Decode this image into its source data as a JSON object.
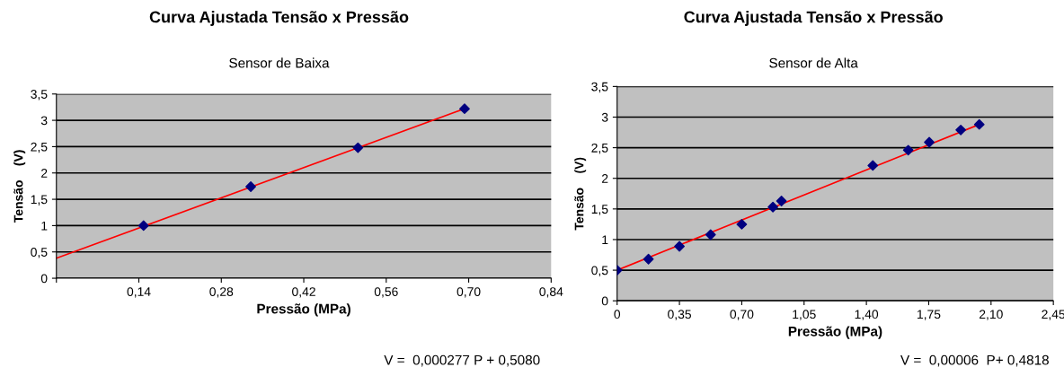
{
  "chart_data": [
    {
      "type": "scatter",
      "title": "Curva Ajustada Tensão x Pressão",
      "subtitle": "Sensor de Baixa",
      "xlabel": "Pressão (MPa)",
      "ylabel": "Tensão    (V)",
      "xlim": [
        0,
        0.84
      ],
      "xticks": [
        {
          "value": 0,
          "label": null
        },
        {
          "value": 0.14,
          "label": "0,14"
        },
        {
          "value": 0.28,
          "label": "0,28"
        },
        {
          "value": 0.42,
          "label": "0,42"
        },
        {
          "value": 0.56,
          "label": "0,56"
        },
        {
          "value": 0.7,
          "label": "0,70"
        },
        {
          "value": 0.84,
          "label": "0,84"
        }
      ],
      "ylim": [
        0,
        3.5
      ],
      "yticks": [
        {
          "value": 0,
          "label": "0"
        },
        {
          "value": 0.5,
          "label": "0,5"
        },
        {
          "value": 1,
          "label": "1"
        },
        {
          "value": 1.5,
          "label": "1,5"
        },
        {
          "value": 2,
          "label": "2"
        },
        {
          "value": 2.5,
          "label": "2,5"
        },
        {
          "value": 3,
          "label": "3"
        },
        {
          "value": 3.5,
          "label": "3,5"
        }
      ],
      "grid": "y",
      "legend": false,
      "annotations": [
        "V =  0,000277 P + 0,5080"
      ],
      "series": [
        {
          "color": "#000080",
          "marker": "diamond",
          "x": [
            0.148,
            0.33,
            0.512,
            0.693
          ],
          "values": [
            1.0,
            1.74,
            2.48,
            3.22
          ]
        },
        {
          "type": "line",
          "color": "#ff0000",
          "marker": "none",
          "x": [
            0,
            0.693
          ],
          "values": [
            0.38,
            3.22
          ]
        }
      ]
    },
    {
      "type": "scatter",
      "title": "Curva Ajustada Tensão x Pressão",
      "subtitle": "Sensor de Alta",
      "xlabel": "Pressão (MPa)",
      "ylabel": "Tensão    (V)",
      "xlim": [
        0,
        2.45
      ],
      "xticks": [
        {
          "value": 0,
          "label": "0"
        },
        {
          "value": 0.35,
          "label": "0,35"
        },
        {
          "value": 0.7,
          "label": "0,70"
        },
        {
          "value": 1.05,
          "label": "1,05"
        },
        {
          "value": 1.4,
          "label": "1,40"
        },
        {
          "value": 1.75,
          "label": "1,75"
        },
        {
          "value": 2.1,
          "label": "2,10"
        },
        {
          "value": 2.45,
          "label": "2,45"
        }
      ],
      "ylim": [
        0,
        3.5
      ],
      "yticks": [
        {
          "value": 0,
          "label": "0"
        },
        {
          "value": 0.5,
          "label": "0,5"
        },
        {
          "value": 1,
          "label": "1"
        },
        {
          "value": 1.5,
          "label": "1,5"
        },
        {
          "value": 2,
          "label": "2"
        },
        {
          "value": 2.5,
          "label": "2,5"
        },
        {
          "value": 3,
          "label": "3"
        },
        {
          "value": 3.5,
          "label": "3,5"
        }
      ],
      "grid": "y",
      "legend": false,
      "annotations": [
        "V =  0,00006  P+ 0,4818"
      ],
      "series": [
        {
          "color": "#000080",
          "marker": "diamond",
          "x": [
            0,
            0.176,
            0.35,
            0.525,
            0.7,
            0.875,
            0.923,
            1.436,
            1.635,
            1.753,
            1.93,
            2.034
          ],
          "values": [
            0.5,
            0.68,
            0.89,
            1.08,
            1.25,
            1.53,
            1.63,
            2.21,
            2.46,
            2.59,
            2.79,
            2.88
          ]
        },
        {
          "type": "line",
          "color": "#ff0000",
          "marker": "none",
          "x": [
            0,
            2.034
          ],
          "values": [
            0.5,
            2.88
          ]
        }
      ]
    }
  ]
}
